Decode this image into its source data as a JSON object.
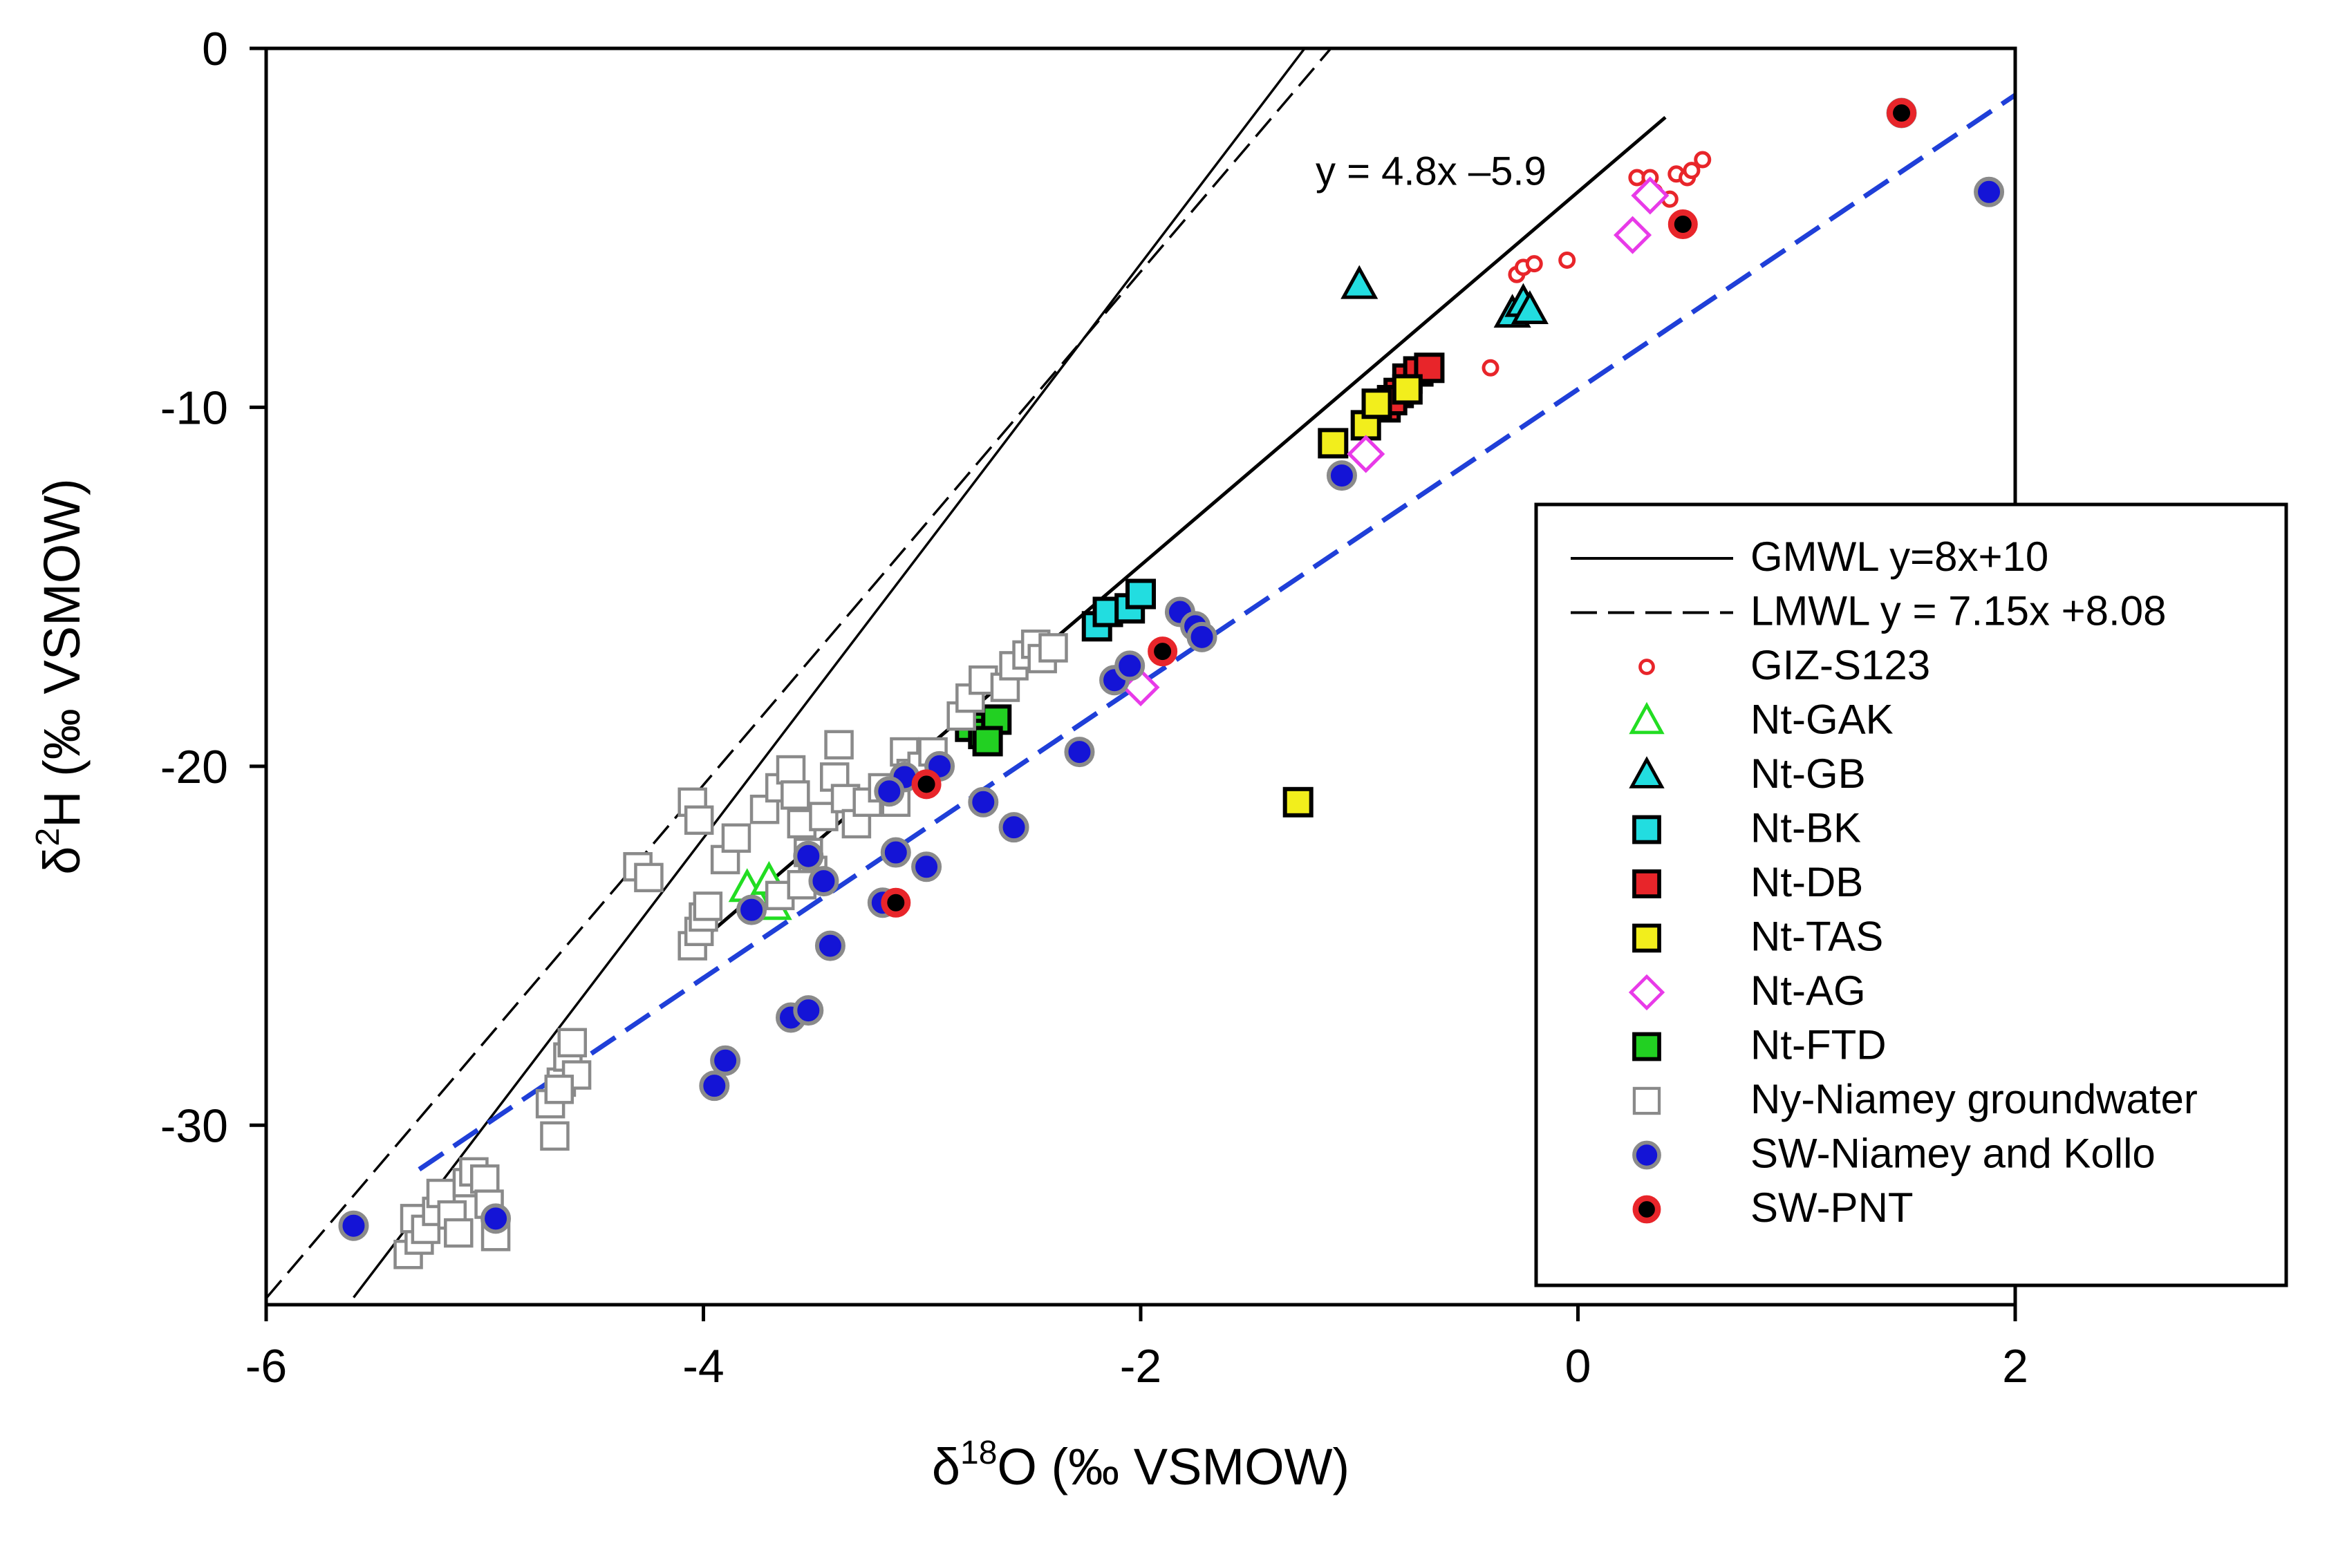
{
  "chart_data": {
    "type": "scatter",
    "xlabel": {
      "prefix": "δ",
      "sup": "18",
      "rest": "O (‰ VSMOW)"
    },
    "ylabel": {
      "prefix": "δ",
      "sup": "2",
      "rest": "H (‰ VSMOW)"
    },
    "xlim": [
      -6,
      2
    ],
    "ylim": [
      -35,
      0
    ],
    "xticks": [
      {
        "value": -6,
        "label": "-6"
      },
      {
        "value": -4,
        "label": "-4"
      },
      {
        "value": -2,
        "label": "-2"
      },
      {
        "value": 0,
        "label": "0"
      },
      {
        "value": 2,
        "label": "2"
      }
    ],
    "yticks": [
      {
        "value": 0,
        "label": "0"
      },
      {
        "value": -10,
        "label": "-10"
      },
      {
        "value": -20,
        "label": "-20"
      },
      {
        "value": -30,
        "label": "-30"
      }
    ],
    "grid": false,
    "legend_position": "right",
    "annotation": {
      "text": "y = 4.8x ‒5.9",
      "x": -1.2,
      "y": -3.8
    },
    "lines": [
      {
        "name": "GMWL y=8x+10",
        "style": "solid",
        "color": "#000000",
        "slope": 8,
        "intercept": 10,
        "x_range": [
          -5.6,
          -1.25
        ]
      },
      {
        "name": "LMWL y = 7.15x +8.08",
        "style": "dashed",
        "color": "#000000",
        "slope": 7.15,
        "intercept": 8.08,
        "x_range": [
          -6.0,
          -1.13
        ]
      },
      {
        "name": "",
        "style": "solid",
        "color": "#000000",
        "slope": 5.2,
        "intercept": -4.0,
        "x_range": [
          -4.0,
          0.4
        ]
      },
      {
        "name": "",
        "style": "dashed",
        "color": "#1f3fd8",
        "slope": 4.1,
        "intercept": -9.5,
        "x_range": [
          -5.3,
          2.0
        ]
      }
    ],
    "series": [
      {
        "name": "GIZ-S123",
        "marker": "circle-small",
        "fill": "#ffffff",
        "stroke": "#e8252a",
        "points": [
          [
            -0.28,
            -6.3
          ],
          [
            -0.25,
            -6.1
          ],
          [
            -0.2,
            -6.0
          ],
          [
            -0.05,
            -5.9
          ],
          [
            0.27,
            -3.6
          ],
          [
            0.33,
            -3.6
          ],
          [
            0.45,
            -3.5
          ],
          [
            0.5,
            -3.6
          ],
          [
            0.52,
            -3.4
          ],
          [
            0.57,
            -3.1
          ],
          [
            0.42,
            -4.2
          ],
          [
            0.35,
            -4.0
          ],
          [
            -0.4,
            -8.9
          ]
        ]
      },
      {
        "name": "Nt-GAK",
        "marker": "triangle",
        "fill": "#ffffff",
        "stroke": "#22dd22",
        "points": [
          [
            -3.8,
            -23.4
          ],
          [
            -3.75,
            -23.8
          ],
          [
            -3.7,
            -23.2
          ],
          [
            -3.68,
            -23.9
          ]
        ]
      },
      {
        "name": "Nt-GB",
        "marker": "triangle",
        "fill": "#22dde0",
        "stroke": "#000000",
        "points": [
          [
            -1.0,
            -6.6
          ],
          [
            -0.3,
            -7.4
          ],
          [
            -0.25,
            -7.1
          ],
          [
            -0.22,
            -7.3
          ]
        ]
      },
      {
        "name": "Nt-BK",
        "marker": "square",
        "fill": "#22dde0",
        "stroke": "#000000",
        "points": [
          [
            -2.2,
            -16.1
          ],
          [
            -2.15,
            -15.7
          ],
          [
            -2.05,
            -15.6
          ],
          [
            -2.0,
            -15.2
          ]
        ]
      },
      {
        "name": "Nt-DB",
        "marker": "square",
        "fill": "#e8252a",
        "stroke": "#000000",
        "points": [
          [
            -0.88,
            -10.0
          ],
          [
            -0.82,
            -9.6
          ],
          [
            -0.78,
            -9.2
          ],
          [
            -0.73,
            -9.0
          ],
          [
            -0.68,
            -8.9
          ],
          [
            -0.85,
            -9.8
          ]
        ]
      },
      {
        "name": "Nt-TAS",
        "marker": "square",
        "fill": "#f2ee1c",
        "stroke": "#000000",
        "points": [
          [
            -1.12,
            -11.0
          ],
          [
            -0.97,
            -10.5
          ],
          [
            -0.92,
            -9.9
          ],
          [
            -0.78,
            -9.5
          ],
          [
            -1.28,
            -21.0
          ]
        ]
      },
      {
        "name": "Nt-AG",
        "marker": "diamond",
        "fill": "#ffffff",
        "stroke": "#e83ae8",
        "points": [
          [
            -2.0,
            -17.8
          ],
          [
            -0.97,
            -11.3
          ],
          [
            0.25,
            -5.2
          ],
          [
            0.33,
            -4.1
          ]
        ]
      },
      {
        "name": "Nt-FTD",
        "marker": "square",
        "fill": "#22d022",
        "stroke": "#000000",
        "points": [
          [
            -2.78,
            -18.9
          ],
          [
            -2.72,
            -19.1
          ],
          [
            -2.66,
            -18.7
          ],
          [
            -2.7,
            -19.3
          ]
        ]
      },
      {
        "name": "Ny-Niamey groundwater",
        "marker": "square-open",
        "fill": "#ffffff",
        "stroke": "#8a8a8a",
        "points": [
          [
            -5.35,
            -33.6
          ],
          [
            -5.3,
            -33.2
          ],
          [
            -5.32,
            -32.6
          ],
          [
            -5.27,
            -32.9
          ],
          [
            -5.22,
            -32.4
          ],
          [
            -5.2,
            -31.9
          ],
          [
            -5.15,
            -32.5
          ],
          [
            -5.12,
            -33.0
          ],
          [
            -5.08,
            -31.6
          ],
          [
            -5.05,
            -31.3
          ],
          [
            -5.0,
            -31.5
          ],
          [
            -4.98,
            -32.2
          ],
          [
            -4.95,
            -33.1
          ],
          [
            -4.68,
            -30.3
          ],
          [
            -4.7,
            -29.4
          ],
          [
            -4.65,
            -28.8
          ],
          [
            -4.62,
            -28.1
          ],
          [
            -4.6,
            -27.7
          ],
          [
            -4.58,
            -28.6
          ],
          [
            -4.66,
            -29.0
          ],
          [
            -4.3,
            -22.8
          ],
          [
            -4.25,
            -23.1
          ],
          [
            -4.05,
            -25.0
          ],
          [
            -4.02,
            -24.6
          ],
          [
            -4.0,
            -24.2
          ],
          [
            -3.98,
            -23.9
          ],
          [
            -4.05,
            -21.0
          ],
          [
            -4.02,
            -21.5
          ],
          [
            -3.9,
            -22.6
          ],
          [
            -3.85,
            -22.0
          ],
          [
            -3.72,
            -21.2
          ],
          [
            -3.65,
            -20.6
          ],
          [
            -3.6,
            -20.1
          ],
          [
            -3.58,
            -20.8
          ],
          [
            -3.55,
            -21.6
          ],
          [
            -3.52,
            -22.4
          ],
          [
            -3.5,
            -22.9
          ],
          [
            -3.45,
            -21.4
          ],
          [
            -3.4,
            -20.3
          ],
          [
            -3.38,
            -19.4
          ],
          [
            -3.35,
            -20.9
          ],
          [
            -3.3,
            -21.6
          ],
          [
            -3.25,
            -21.0
          ],
          [
            -3.18,
            -20.6
          ],
          [
            -3.12,
            -21.0
          ],
          [
            -3.08,
            -19.6
          ],
          [
            -3.05,
            -20.2
          ],
          [
            -3.0,
            -20.0
          ],
          [
            -2.95,
            -19.6
          ],
          [
            -2.82,
            -18.6
          ],
          [
            -2.78,
            -18.1
          ],
          [
            -2.72,
            -17.6
          ],
          [
            -2.62,
            -17.8
          ],
          [
            -2.58,
            -17.2
          ],
          [
            -2.52,
            -16.9
          ],
          [
            -2.48,
            -16.6
          ],
          [
            -2.45,
            -17.0
          ],
          [
            -2.4,
            -16.7
          ],
          [
            -3.65,
            -23.6
          ],
          [
            -3.55,
            -23.3
          ]
        ]
      },
      {
        "name": "SW-Niamey and Kollo",
        "marker": "circle",
        "fill": "#1414d6",
        "stroke": "#8a8a8a",
        "points": [
          [
            -5.6,
            -32.8
          ],
          [
            -4.95,
            -32.6
          ],
          [
            -3.95,
            -28.9
          ],
          [
            -3.9,
            -28.2
          ],
          [
            -3.6,
            -27.0
          ],
          [
            -3.52,
            -26.8
          ],
          [
            -3.42,
            -25.0
          ],
          [
            -3.45,
            -23.2
          ],
          [
            -3.52,
            -22.5
          ],
          [
            -3.78,
            -24.0
          ],
          [
            -3.08,
            -20.3
          ],
          [
            -3.12,
            -22.4
          ],
          [
            -2.98,
            -22.8
          ],
          [
            -3.18,
            -23.8
          ],
          [
            -3.15,
            -20.7
          ],
          [
            -2.92,
            -20.0
          ],
          [
            -2.72,
            -21.0
          ],
          [
            -2.58,
            -21.7
          ],
          [
            -2.28,
            -19.6
          ],
          [
            -2.12,
            -17.6
          ],
          [
            -2.05,
            -17.2
          ],
          [
            -1.82,
            -15.7
          ],
          [
            -1.75,
            -16.1
          ],
          [
            -1.72,
            -16.4
          ],
          [
            -1.08,
            -11.9
          ],
          [
            1.48,
            -1.8
          ],
          [
            1.88,
            -4.0
          ]
        ]
      },
      {
        "name": "SW-PNT",
        "marker": "circle-ring",
        "fill": "#000000",
        "stroke": "#e8252a",
        "points": [
          [
            -3.12,
            -23.8
          ],
          [
            -2.98,
            -20.5
          ],
          [
            -1.9,
            -16.8
          ],
          [
            0.48,
            -4.9
          ],
          [
            1.48,
            -1.8
          ]
        ]
      }
    ]
  }
}
